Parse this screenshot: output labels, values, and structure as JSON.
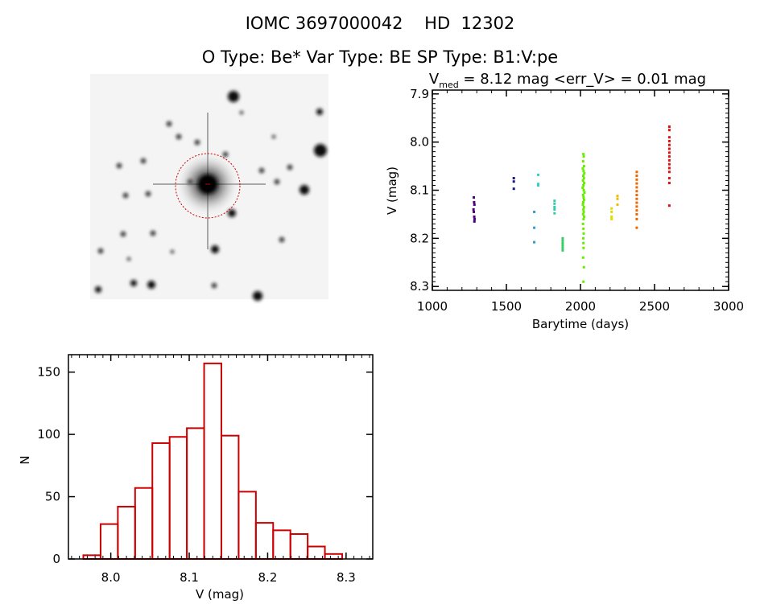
{
  "header": {
    "line1": "IOMC 3697000042    HD  12302",
    "line2": "O Type: Be*  Var Type: BE  SP Type: B1:V:pe"
  },
  "image_panel": {
    "description_label": "",
    "circle_color": "#cc0000"
  },
  "chart_data": [
    {
      "type": "scatter",
      "title_prefix": "V",
      "title_sub": "med",
      "title_rest": " = 8.12 mag <err_V> = 0.01 mag",
      "xlabel": "Barytime (days)",
      "ylabel": "V (mag)",
      "xlim": [
        1000,
        3000
      ],
      "ylim": [
        8.308,
        7.892
      ],
      "y_reversed": true,
      "xticks": [
        "1000",
        "1500",
        "2000",
        "2500",
        "3000"
      ],
      "yticks": [
        "7.9",
        "8.0",
        "8.1",
        "8.2",
        "8.3"
      ],
      "grid": false,
      "series": [
        {
          "color": "#4b0082",
          "x": [
            1280,
            1282,
            1284,
            1278,
            1280,
            1283,
            1285,
            1284
          ],
          "y": [
            8.115,
            8.125,
            8.13,
            8.14,
            8.145,
            8.155,
            8.16,
            8.165
          ]
        },
        {
          "color": "#1a1a80",
          "x": [
            1550,
            1550,
            1550
          ],
          "y": [
            8.075,
            8.082,
            8.097
          ]
        },
        {
          "color": "#3399cc",
          "x": [
            1688,
            1688,
            1688
          ],
          "y": [
            8.145,
            8.178,
            8.208
          ]
        },
        {
          "color": "#33cccc",
          "x": [
            1715,
            1715,
            1715
          ],
          "y": [
            8.068,
            8.087,
            8.09
          ]
        },
        {
          "color": "#33ccaa",
          "x": [
            1825,
            1825,
            1825,
            1825,
            1825
          ],
          "y": [
            8.122,
            8.128,
            8.135,
            8.14,
            8.148
          ]
        },
        {
          "color": "#33cc66",
          "x": [
            1880,
            1880,
            1880,
            1880,
            1880,
            1880
          ],
          "y": [
            8.2,
            8.205,
            8.21,
            8.215,
            8.22,
            8.225
          ]
        },
        {
          "color": "#66ee00",
          "x": [
            2020,
            2022,
            2018,
            2024,
            2016,
            2021,
            2026,
            2019,
            2023,
            2017,
            2025,
            2020,
            2015,
            2022,
            2027,
            2018,
            2021,
            2024,
            2019,
            2016,
            2023,
            2020,
            2022,
            2018,
            2025,
            2021,
            2017,
            2020,
            2022,
            2019,
            2020,
            2021,
            2018,
            2023,
            2020
          ],
          "y": [
            8.025,
            8.03,
            8.04,
            8.05,
            8.055,
            8.06,
            8.065,
            8.07,
            8.075,
            8.08,
            8.085,
            8.09,
            8.095,
            8.1,
            8.105,
            8.11,
            8.115,
            8.12,
            8.125,
            8.13,
            8.135,
            8.14,
            8.145,
            8.15,
            8.155,
            8.16,
            8.17,
            8.18,
            8.19,
            8.2,
            8.21,
            8.22,
            8.24,
            8.26,
            8.29
          ]
        },
        {
          "color": "#dddd00",
          "x": [
            2210,
            2210,
            2210,
            2210
          ],
          "y": [
            8.138,
            8.145,
            8.155,
            8.16
          ]
        },
        {
          "color": "#eebb00",
          "x": [
            2250,
            2250,
            2250
          ],
          "y": [
            8.112,
            8.118,
            8.13
          ]
        },
        {
          "color": "#ee6600",
          "x": [
            2380,
            2380,
            2380,
            2380,
            2380,
            2380,
            2380,
            2380,
            2380,
            2380,
            2380,
            2380,
            2380,
            2380
          ],
          "y": [
            8.062,
            8.07,
            8.078,
            8.086,
            8.094,
            8.102,
            8.11,
            8.118,
            8.126,
            8.134,
            8.142,
            8.15,
            8.16,
            8.178
          ]
        },
        {
          "color": "#dd1111",
          "x": [
            2600,
            2600,
            2600,
            2600,
            2600,
            2600,
            2600,
            2600,
            2600,
            2600,
            2600,
            2600,
            2600,
            2600,
            2600
          ],
          "y": [
            7.968,
            7.975,
            7.99,
            7.998,
            8.006,
            8.014,
            8.022,
            8.03,
            8.038,
            8.046,
            8.054,
            8.062,
            8.075,
            8.085,
            8.132
          ]
        }
      ]
    },
    {
      "type": "bar",
      "subtype": "histogram",
      "xlabel": "V (mag)",
      "ylabel": "N",
      "xlim": [
        7.946,
        8.334
      ],
      "ylim": [
        0,
        164
      ],
      "xticks": [
        "8.0",
        "8.1",
        "8.2",
        "8.3"
      ],
      "yticks": [
        "0",
        "50",
        "100",
        "150"
      ],
      "bin_start": 7.965,
      "bin_width": 0.022,
      "values": [
        3,
        28,
        42,
        57,
        93,
        98,
        105,
        157,
        99,
        54,
        29,
        23,
        20,
        10,
        4
      ],
      "color": "#cc0000",
      "grid": false
    }
  ]
}
